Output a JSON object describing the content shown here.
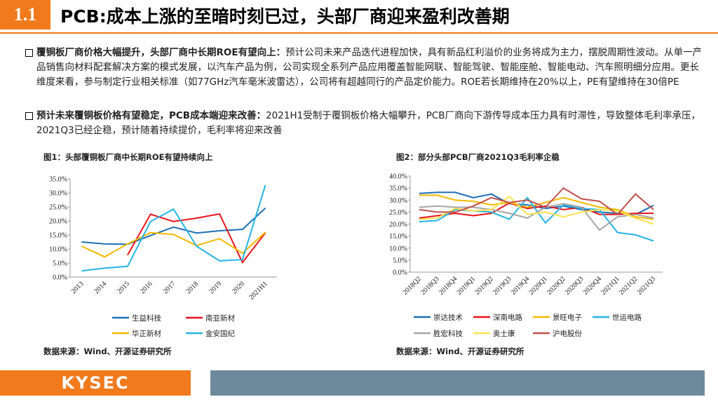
{
  "header": {
    "section": "1.1",
    "title": "PCB:成本上涨的至暗时刻已过，头部厂商迎来盈利改善期"
  },
  "bullets": [
    {
      "lead": "覆铜板厂商价格大幅提升，头部厂商中长期ROE有望向上：",
      "text": "预计公司未来产品迭代进程加快，具有新品红利溢价的业务将成为主力，摆脱周期性波动。从单一产品销售向材料配套解决方案的模式发展，以汽车产品为例，公司实现全系列产品应用覆盖智能网联、智能驾驶、智能座舱、智能电动、汽车照明细分应用。更长维度来看，参与制定行业相关标准（如77GHz汽车毫米波雷达），公司将有超越同行的产品定价能力。ROE若长期维持在20%以上，PE有望维持在30倍PE"
    },
    {
      "lead": "预计未来覆铜板价格有望稳定，PCB成本端迎来改善：",
      "text": "2021H1受制于覆铜板价格大幅攀升，PCB厂商向下游传导成本压力具有时滞性，导致整体毛利率承压，2021Q3已经企稳，预计随着持续提价，毛利率将迎来改善"
    }
  ],
  "chart_data": [
    {
      "type": "line",
      "title": "图1：头部覆铜板厂商中长期ROE有望持续向上",
      "source": "数据来源：Wind、开源证券研究所",
      "categories": [
        "2013",
        "2014",
        "2015",
        "2016",
        "2017",
        "2018",
        "2019",
        "2020",
        "2021H1"
      ],
      "ylim": [
        0,
        35
      ],
      "yticks": [
        {
          "value": 0,
          "label": "0.0%"
        },
        {
          "value": 5,
          "label": "5.0%"
        },
        {
          "value": 10,
          "label": "10.0%"
        },
        {
          "value": 15,
          "label": "15.0%"
        },
        {
          "value": 20,
          "label": "20.0%"
        },
        {
          "value": 25,
          "label": "25.0%"
        },
        {
          "value": 30,
          "label": "30.0%"
        },
        {
          "value": 35,
          "label": "35.0%"
        }
      ],
      "series": [
        {
          "name": "生益科技",
          "color": "#1f6fb5",
          "values": [
            12.5,
            11.8,
            11.7,
            14.8,
            17.8,
            15.7,
            16.5,
            17.0,
            24.6
          ]
        },
        {
          "name": "南亚新材",
          "color": "#e8141b",
          "values": [
            null,
            null,
            7.8,
            22.4,
            19.8,
            21.0,
            22.5,
            5.2,
            15.8
          ]
        },
        {
          "name": "华正新材",
          "color": "#f5b800",
          "values": [
            11.0,
            7.2,
            11.8,
            15.8,
            15.2,
            11.2,
            13.7,
            8.5,
            16.0
          ]
        },
        {
          "name": "金安国纪",
          "color": "#26b4e6",
          "values": [
            2.2,
            3.2,
            3.8,
            19.8,
            24.2,
            11.0,
            5.8,
            6.2,
            32.8
          ]
        }
      ]
    },
    {
      "type": "line",
      "title": "图2：部分头部PCB厂商2021Q3毛利率企稳",
      "source": "数据来源：Wind、开源证券研究所",
      "categories": [
        "2018Q2",
        "2018Q3",
        "2018Q4",
        "2019Q1",
        "2019Q2",
        "2019Q3",
        "2019Q4",
        "2020Q1",
        "2020Q2",
        "2020Q3",
        "2020Q4",
        "2021Q1",
        "2021Q2",
        "2021Q3"
      ],
      "ylim": [
        0,
        40
      ],
      "yticks": [
        {
          "value": 0,
          "label": "0.0%"
        },
        {
          "value": 5,
          "label": "5.0%"
        },
        {
          "value": 10,
          "label": "10.0%"
        },
        {
          "value": 15,
          "label": "15.0%"
        },
        {
          "value": 20,
          "label": "20.0%"
        },
        {
          "value": 25,
          "label": "25.0%"
        },
        {
          "value": 30,
          "label": "30.0%"
        },
        {
          "value": 35,
          "label": "35.0%"
        },
        {
          "value": 40,
          "label": "40.0%"
        }
      ],
      "series": [
        {
          "name": "崇达技术",
          "color": "#1f6fb5",
          "values": [
            32.8,
            33.2,
            33.2,
            31.0,
            32.5,
            28.5,
            28.0,
            26.5,
            27.5,
            26.0,
            25.0,
            24.5,
            24.0,
            27.8
          ]
        },
        {
          "name": "深南电路",
          "color": "#e8141b",
          "values": [
            22.5,
            23.5,
            24.5,
            23.5,
            24.5,
            28.8,
            26.5,
            27.5,
            26.0,
            27.0,
            24.0,
            24.0,
            24.5,
            24.5
          ]
        },
        {
          "name": "景旺电子",
          "color": "#f5b800",
          "values": [
            32.0,
            32.0,
            30.0,
            29.5,
            28.0,
            29.0,
            27.0,
            29.0,
            31.0,
            29.0,
            27.0,
            26.0,
            23.0,
            22.0
          ]
        },
        {
          "name": "世运电路",
          "color": "#26b4e6",
          "values": [
            21.0,
            21.5,
            26.0,
            25.5,
            25.0,
            22.0,
            31.0,
            20.5,
            28.0,
            26.5,
            26.0,
            16.5,
            15.5,
            13.0
          ]
        },
        {
          "name": "胜宏科技",
          "color": "#a6a6a6",
          "values": [
            27.0,
            27.5,
            27.0,
            27.0,
            26.0,
            24.5,
            22.5,
            27.0,
            28.5,
            27.0,
            17.5,
            23.0,
            24.0,
            22.5
          ]
        },
        {
          "name": "奥士康",
          "color": "#ffe24d",
          "values": [
            22.0,
            22.5,
            26.5,
            25.5,
            26.0,
            31.5,
            24.0,
            25.0,
            23.0,
            25.0,
            26.0,
            25.5,
            22.5,
            20.0
          ]
        },
        {
          "name": "沪电股份",
          "color": "#c0504d",
          "values": [
            26.0,
            25.0,
            25.0,
            27.5,
            31.0,
            29.0,
            30.0,
            27.0,
            35.0,
            30.5,
            29.5,
            24.0,
            32.5,
            26.0
          ]
        }
      ]
    }
  ],
  "footer": {
    "logo": "KYSEC"
  }
}
